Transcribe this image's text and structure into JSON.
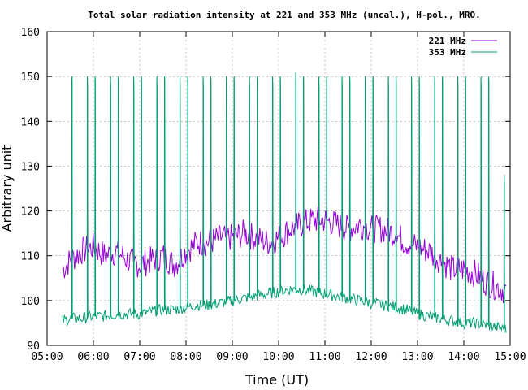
{
  "chart_data": {
    "type": "line",
    "title": "Total solar radiation intensity at 221 and 353 MHz (uncal.), H-pol., MRO.",
    "xlabel": "Time (UT)",
    "ylabel": "Arbitrary unit",
    "xlim": [
      "05:00",
      "15:00"
    ],
    "ylim": [
      90,
      160
    ],
    "x_ticks": [
      "05:00",
      "06:00",
      "07:00",
      "08:00",
      "09:00",
      "10:00",
      "11:00",
      "12:00",
      "13:00",
      "14:00",
      "15:00"
    ],
    "y_ticks": [
      90,
      100,
      110,
      120,
      130,
      140,
      150,
      160
    ],
    "grid": true,
    "legend_position": "top-right",
    "calibration_spike_times": [
      "05:32",
      "05:52",
      "06:02",
      "06:22",
      "06:32",
      "06:52",
      "07:02",
      "07:22",
      "07:32",
      "07:52",
      "08:02",
      "08:22",
      "08:32",
      "08:52",
      "09:02",
      "09:22",
      "09:32",
      "09:52",
      "10:02",
      "10:22",
      "10:32",
      "10:52",
      "11:02",
      "11:22",
      "11:32",
      "11:52",
      "12:02",
      "12:22",
      "12:32",
      "12:52",
      "13:02",
      "13:22",
      "13:32",
      "13:52",
      "14:02",
      "14:22",
      "14:32",
      "14:52"
    ],
    "series": [
      {
        "name": "221 MHz",
        "color": "#9400d3",
        "x": [
          "05:20",
          "05:30",
          "05:45",
          "06:00",
          "06:15",
          "06:30",
          "06:45",
          "07:00",
          "07:15",
          "07:30",
          "07:45",
          "08:00",
          "08:15",
          "08:30",
          "08:45",
          "09:00",
          "09:15",
          "09:30",
          "09:45",
          "10:00",
          "10:15",
          "10:30",
          "10:45",
          "11:00",
          "11:15",
          "11:30",
          "11:45",
          "12:00",
          "12:15",
          "12:30",
          "12:45",
          "13:00",
          "13:15",
          "13:30",
          "13:45",
          "14:00",
          "14:15",
          "14:30",
          "14:45",
          "14:55"
        ],
        "y": [
          107,
          109,
          111,
          112,
          110,
          111,
          109,
          108,
          109,
          110,
          108,
          111,
          113,
          113,
          114,
          114,
          115,
          114,
          113,
          114,
          116,
          117,
          118,
          118,
          117,
          116,
          117,
          116,
          116,
          115,
          113,
          112,
          111,
          109,
          107,
          107,
          106,
          104,
          103,
          102
        ],
        "spike_peak": [
          123,
          130,
          130,
          130,
          129,
          129,
          129,
          129,
          130,
          130,
          130,
          130,
          131,
          131,
          131,
          131,
          132,
          132,
          132,
          133,
          133,
          133,
          133,
          133,
          132,
          132,
          132,
          132,
          131,
          131,
          131,
          130,
          130,
          130,
          129,
          129,
          128,
          128
        ]
      },
      {
        "name": "353 MHz",
        "color": "#009e73",
        "x": [
          "05:20",
          "05:30",
          "05:45",
          "06:00",
          "06:15",
          "06:30",
          "06:45",
          "07:00",
          "07:15",
          "07:30",
          "07:45",
          "08:00",
          "08:15",
          "08:30",
          "08:45",
          "09:00",
          "09:15",
          "09:30",
          "09:45",
          "10:00",
          "10:15",
          "10:30",
          "10:45",
          "11:00",
          "11:15",
          "11:30",
          "11:45",
          "12:00",
          "12:15",
          "12:30",
          "12:45",
          "13:00",
          "13:15",
          "13:30",
          "13:45",
          "14:00",
          "14:15",
          "14:30",
          "14:45",
          "14:55"
        ],
        "y": [
          95.5,
          96,
          96,
          96.5,
          96.5,
          97,
          97,
          97,
          97.5,
          98,
          98,
          98.5,
          99,
          99,
          99.5,
          100,
          100.5,
          101,
          101.5,
          102,
          102.5,
          102.5,
          102,
          101.5,
          101,
          100.5,
          100,
          99.5,
          99,
          98.5,
          98,
          97,
          96.5,
          96,
          95.5,
          95,
          95,
          94.5,
          94,
          93.5
        ],
        "spike_peak": [
          150,
          150,
          150,
          150,
          150,
          150,
          150,
          150,
          150,
          150,
          150,
          150,
          150,
          150,
          150,
          150,
          150,
          150,
          150,
          151,
          150,
          150,
          150,
          150,
          150,
          150,
          150,
          150,
          150,
          150,
          150,
          150,
          150,
          150,
          150,
          150,
          150,
          128
        ]
      }
    ]
  }
}
